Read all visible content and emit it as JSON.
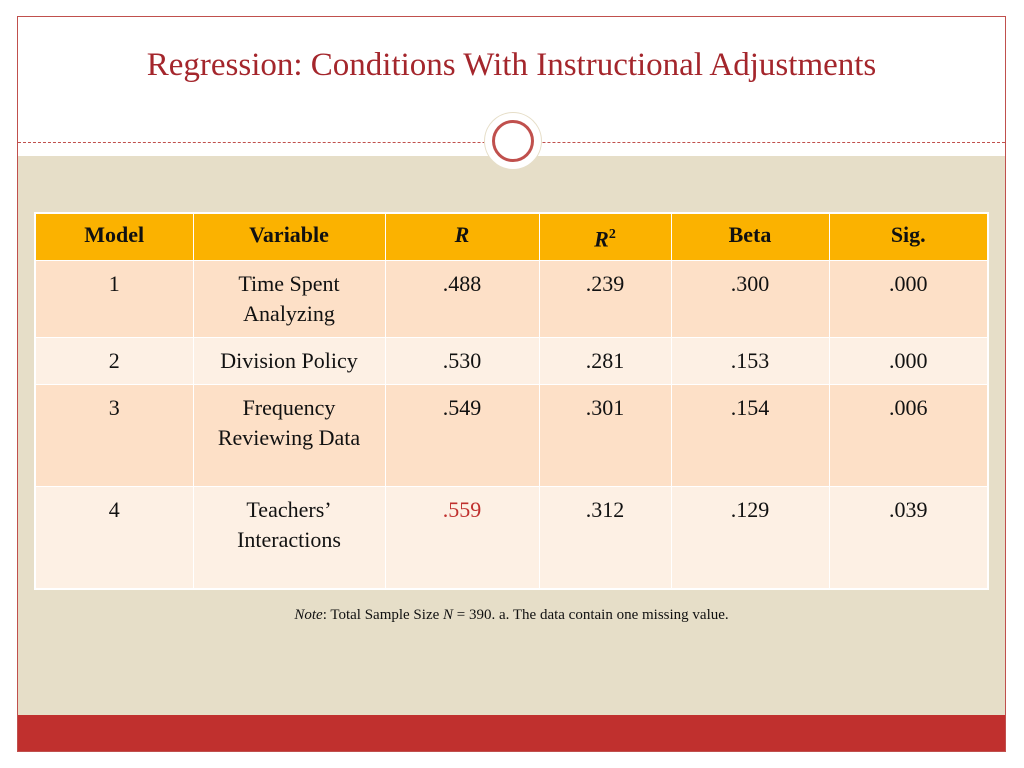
{
  "slide": {
    "title": "Regression: Conditions With Instructional Adjustments",
    "accent_color": "#c0302e",
    "header_color": "#fbb200"
  },
  "table": {
    "headers": {
      "model": "Model",
      "variable": "Variable",
      "r": "R",
      "r2_base": "R",
      "r2_sup": "2",
      "beta": "Beta",
      "sig": "Sig."
    },
    "rows": [
      {
        "model": "1",
        "variable": "Time Spent Analyzing",
        "r": ".488",
        "r2": ".239",
        "beta": ".300",
        "sig": ".000"
      },
      {
        "model": "2",
        "variable": "Division Policy",
        "r": ".530",
        "r2": ".281",
        "beta": ".153",
        "sig": ".000"
      },
      {
        "model": "3",
        "variable": "Frequency Reviewing Data",
        "r": ".549",
        "r2": ".301",
        "beta": ".154",
        "sig": ".006"
      },
      {
        "model": "4",
        "variable": "Teachers’ Interactions",
        "r": ".559",
        "r2": ".312",
        "beta": ".129",
        "sig": ".039"
      }
    ]
  },
  "note": {
    "label": "Note",
    "text_before_n": ": Total Sample Size ",
    "n_symbol": "N",
    "text_after_n": " = 390. a. The data contain one missing value."
  }
}
